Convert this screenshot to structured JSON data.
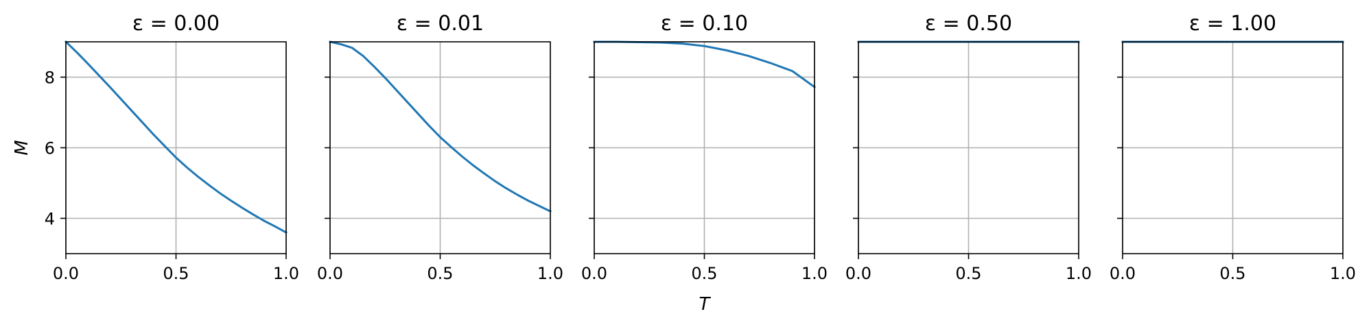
{
  "chart_data": {
    "type": "line",
    "xlabel": "T",
    "ylabel": "M",
    "xlim": [
      0,
      1
    ],
    "ylim": [
      3,
      9
    ],
    "xticks": [
      0.0,
      0.5,
      1.0
    ],
    "xtick_labels": [
      "0.0",
      "0.5",
      "1.0"
    ],
    "yticks": [
      4,
      6,
      8
    ],
    "ytick_labels": [
      "4",
      "6",
      "8"
    ],
    "grid": true,
    "line_color": "#1f77b4",
    "panels": [
      {
        "title": "ε = 0.00",
        "series": [
          {
            "x": [
              0.0,
              0.05,
              0.1,
              0.15,
              0.2,
              0.25,
              0.3,
              0.35,
              0.4,
              0.45,
              0.5,
              0.55,
              0.6,
              0.65,
              0.7,
              0.75,
              0.8,
              0.85,
              0.9,
              0.95,
              1.0
            ],
            "y": [
              9.0,
              8.7,
              8.38,
              8.05,
              7.72,
              7.38,
              7.04,
              6.7,
              6.36,
              6.04,
              5.72,
              5.44,
              5.18,
              4.94,
              4.71,
              4.5,
              4.3,
              4.11,
              3.93,
              3.77,
              3.6
            ]
          }
        ]
      },
      {
        "title": "ε = 0.01",
        "series": [
          {
            "x": [
              0.0,
              0.05,
              0.1,
              0.15,
              0.2,
              0.25,
              0.3,
              0.35,
              0.4,
              0.45,
              0.5,
              0.55,
              0.6,
              0.65,
              0.7,
              0.75,
              0.8,
              0.85,
              0.9,
              0.95,
              1.0
            ],
            "y": [
              9.0,
              8.93,
              8.83,
              8.6,
              8.3,
              7.98,
              7.64,
              7.3,
              6.96,
              6.62,
              6.3,
              6.02,
              5.75,
              5.5,
              5.27,
              5.05,
              4.85,
              4.67,
              4.5,
              4.35,
              4.2
            ]
          }
        ]
      },
      {
        "title": "ε = 0.10",
        "series": [
          {
            "x": [
              0.0,
              0.1,
              0.2,
              0.3,
              0.4,
              0.5,
              0.6,
              0.7,
              0.8,
              0.9,
              1.0
            ],
            "y": [
              9.0,
              9.0,
              8.99,
              8.98,
              8.95,
              8.88,
              8.76,
              8.6,
              8.4,
              8.17,
              7.72
            ]
          }
        ]
      },
      {
        "title": "ε = 0.50",
        "series": [
          {
            "x": [
              0.0,
              0.5,
              1.0
            ],
            "y": [
              9.0,
              9.0,
              9.0
            ]
          }
        ]
      },
      {
        "title": "ε = 1.00",
        "series": [
          {
            "x": [
              0.0,
              0.5,
              1.0
            ],
            "y": [
              9.0,
              9.0,
              9.0
            ]
          }
        ]
      }
    ]
  }
}
